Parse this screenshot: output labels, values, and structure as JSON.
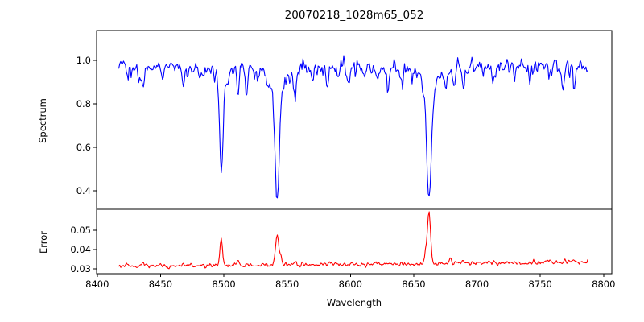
{
  "chart_data": {
    "type": "line",
    "title": "20070218_1028m65_052",
    "xlabel": "Wavelength",
    "grid": false,
    "legend": null,
    "xlim": [
      8399.5,
      8806.5
    ],
    "xticks": [
      8400,
      8450,
      8500,
      8550,
      8600,
      8650,
      8700,
      8750,
      8800
    ],
    "x_data_range": [
      8417,
      8788
    ],
    "sample_step_angstrom": 0.75,
    "noise_seed": 20070218,
    "panels": [
      {
        "name": "spectrum",
        "ylabel": "Spectrum",
        "line_color": "#0000ff",
        "ylim": [
          0.315,
          1.137
        ],
        "yticks": [
          0.4,
          0.6,
          0.8,
          1.0
        ],
        "continuum_level": 0.968,
        "noise_sigma": 0.021,
        "absorption_lines": [
          {
            "center": 8498.0,
            "core_depth": 0.4,
            "core_width": 1.3,
            "wing_depth": 0.09,
            "wing_width": 4.5
          },
          {
            "center": 8542.1,
            "core_depth": 0.52,
            "core_width": 1.6,
            "wing_depth": 0.115,
            "wing_width": 6.0
          },
          {
            "center": 8662.1,
            "core_depth": 0.5,
            "core_width": 1.7,
            "wing_depth": 0.115,
            "wing_width": 6.0
          }
        ],
        "minor_lines": [
          {
            "center": 8424,
            "depth": 0.055,
            "width": 0.9
          },
          {
            "center": 8433,
            "depth": 0.07,
            "width": 0.8
          },
          {
            "center": 8436,
            "depth": 0.09,
            "width": 0.9
          },
          {
            "center": 8451,
            "depth": 0.05,
            "width": 0.8
          },
          {
            "center": 8468,
            "depth": 0.08,
            "width": 1.0
          },
          {
            "center": 8481,
            "depth": 0.05,
            "width": 0.8
          },
          {
            "center": 8511,
            "depth": 0.12,
            "width": 1.0
          },
          {
            "center": 8518,
            "depth": 0.09,
            "width": 0.9
          },
          {
            "center": 8527,
            "depth": 0.05,
            "width": 0.8
          },
          {
            "center": 8556,
            "depth": 0.1,
            "width": 1.0
          },
          {
            "center": 8569,
            "depth": 0.06,
            "width": 0.9
          },
          {
            "center": 8582,
            "depth": 0.07,
            "width": 0.9
          },
          {
            "center": 8590,
            "depth": 0.05,
            "width": 0.8
          },
          {
            "center": 8598,
            "depth": 0.06,
            "width": 0.9
          },
          {
            "center": 8611,
            "depth": 0.05,
            "width": 0.8
          },
          {
            "center": 8622,
            "depth": 0.07,
            "width": 0.9
          },
          {
            "center": 8630,
            "depth": 0.08,
            "width": 0.9
          },
          {
            "center": 8641,
            "depth": 0.05,
            "width": 0.8
          },
          {
            "center": 8649,
            "depth": 0.06,
            "width": 0.9
          },
          {
            "center": 8675,
            "depth": 0.09,
            "width": 0.9
          },
          {
            "center": 8682,
            "depth": 0.1,
            "width": 0.9
          },
          {
            "center": 8689,
            "depth": 0.11,
            "width": 0.9
          },
          {
            "center": 8705,
            "depth": 0.07,
            "width": 0.9
          },
          {
            "center": 8713,
            "depth": 0.07,
            "width": 0.9
          },
          {
            "center": 8730,
            "depth": 0.08,
            "width": 0.9
          },
          {
            "center": 8742,
            "depth": 0.06,
            "width": 0.8
          },
          {
            "center": 8757,
            "depth": 0.06,
            "width": 0.9
          },
          {
            "center": 8768,
            "depth": 0.07,
            "width": 0.9
          },
          {
            "center": 8777,
            "depth": 0.1,
            "width": 0.9
          }
        ]
      },
      {
        "name": "error",
        "ylabel": "Error",
        "line_color": "#ff0000",
        "ylim": [
          0.0275,
          0.0608
        ],
        "yticks": [
          0.03,
          0.04,
          0.05
        ],
        "baseline_left": 0.0313,
        "baseline_right": 0.0335,
        "noise_sigma": 0.00055,
        "peaks": [
          {
            "center": 8498.0,
            "height": 0.014,
            "width": 0.9
          },
          {
            "center": 8542.1,
            "height": 0.0153,
            "width": 1.3
          },
          {
            "center": 8545.0,
            "height": 0.004,
            "width": 0.8
          },
          {
            "center": 8662.1,
            "height": 0.0282,
            "width": 1.2
          },
          {
            "center": 8659.5,
            "height": 0.006,
            "width": 0.8
          },
          {
            "center": 8436,
            "height": 0.0012,
            "width": 1.0
          },
          {
            "center": 8468,
            "height": 0.0008,
            "width": 1.0
          },
          {
            "center": 8511,
            "height": 0.0018,
            "width": 1.0
          },
          {
            "center": 8518,
            "height": 0.001,
            "width": 0.9
          },
          {
            "center": 8556,
            "height": 0.0012,
            "width": 1.0
          },
          {
            "center": 8622,
            "height": 0.0008,
            "width": 0.9
          },
          {
            "center": 8679,
            "height": 0.002,
            "width": 0.9
          },
          {
            "center": 8689,
            "height": 0.0016,
            "width": 0.9
          },
          {
            "center": 8713,
            "height": 0.0008,
            "width": 0.9
          },
          {
            "center": 8730,
            "height": 0.001,
            "width": 0.9
          },
          {
            "center": 8757,
            "height": 0.0008,
            "width": 0.9
          },
          {
            "center": 8777,
            "height": 0.0015,
            "width": 0.9
          },
          {
            "center": 8788,
            "height": 0.002,
            "width": 0.6
          }
        ]
      }
    ],
    "colors": {
      "axes": "#000000",
      "background": "#ffffff",
      "text": "#000000"
    }
  }
}
